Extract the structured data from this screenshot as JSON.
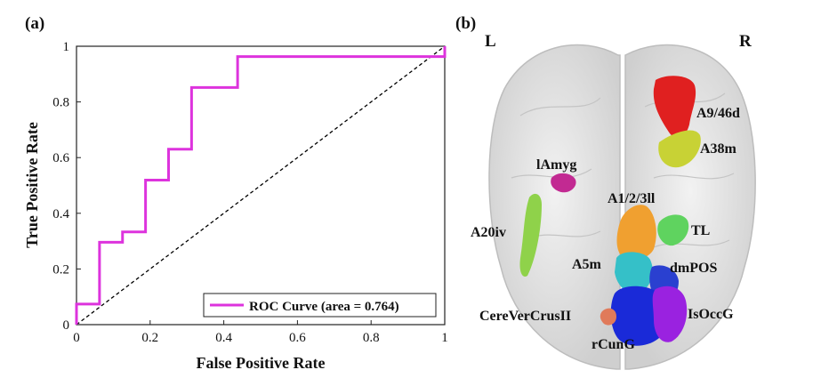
{
  "figure": {
    "panel_a_label": "(a)",
    "panel_b_label": "(b)"
  },
  "chart_data": {
    "type": "line",
    "title": "",
    "xlabel": "False Positive Rate",
    "ylabel": "True Positive Rate",
    "xlim": [
      0,
      1
    ],
    "ylim": [
      0,
      1
    ],
    "xticks": [
      "0",
      "0.2",
      "0.4",
      "0.6",
      "0.8",
      "1"
    ],
    "yticks": [
      "0",
      "0.2",
      "0.4",
      "0.6",
      "0.8",
      "1"
    ],
    "series": [
      {
        "name": "ROC Curve (area = 0.764)",
        "color": "#dd33dd",
        "x": [
          0,
          0,
          0.0625,
          0.0625,
          0.125,
          0.125,
          0.1875,
          0.1875,
          0.25,
          0.25,
          0.3125,
          0.3125,
          0.4375,
          0.4375,
          1,
          1
        ],
        "y": [
          0,
          0.074,
          0.074,
          0.296,
          0.296,
          0.333,
          0.333,
          0.519,
          0.519,
          0.63,
          0.63,
          0.852,
          0.852,
          0.963,
          0.963,
          1
        ]
      },
      {
        "name": "chance",
        "color": "#000000",
        "style": "dashed",
        "x": [
          0,
          1
        ],
        "y": [
          0,
          1
        ]
      }
    ],
    "legend": {
      "entry": "ROC Curve (area = 0.764)",
      "position": "bottom-right"
    }
  },
  "brain": {
    "left_label": "L",
    "right_label": "R",
    "regions": [
      {
        "name": "A9/46d",
        "color": "#e02020"
      },
      {
        "name": "A38m",
        "color": "#c8d235"
      },
      {
        "name": "lAmyg",
        "color": "#c22a92"
      },
      {
        "name": "A1/2/3ll",
        "color": "#f0a030"
      },
      {
        "name": "A20iv",
        "color": "#8fd24a"
      },
      {
        "name": "TL",
        "color": "#5fd35f"
      },
      {
        "name": "A5m",
        "color": "#35c0c8"
      },
      {
        "name": "dmPOS",
        "color": "#2a40d0"
      },
      {
        "name": "IsOccG",
        "color": "#9a22e0"
      },
      {
        "name": "CereVerCrusII",
        "color": "#e07a5a"
      },
      {
        "name": "rCunG",
        "color": "#1a2ad8"
      }
    ]
  }
}
